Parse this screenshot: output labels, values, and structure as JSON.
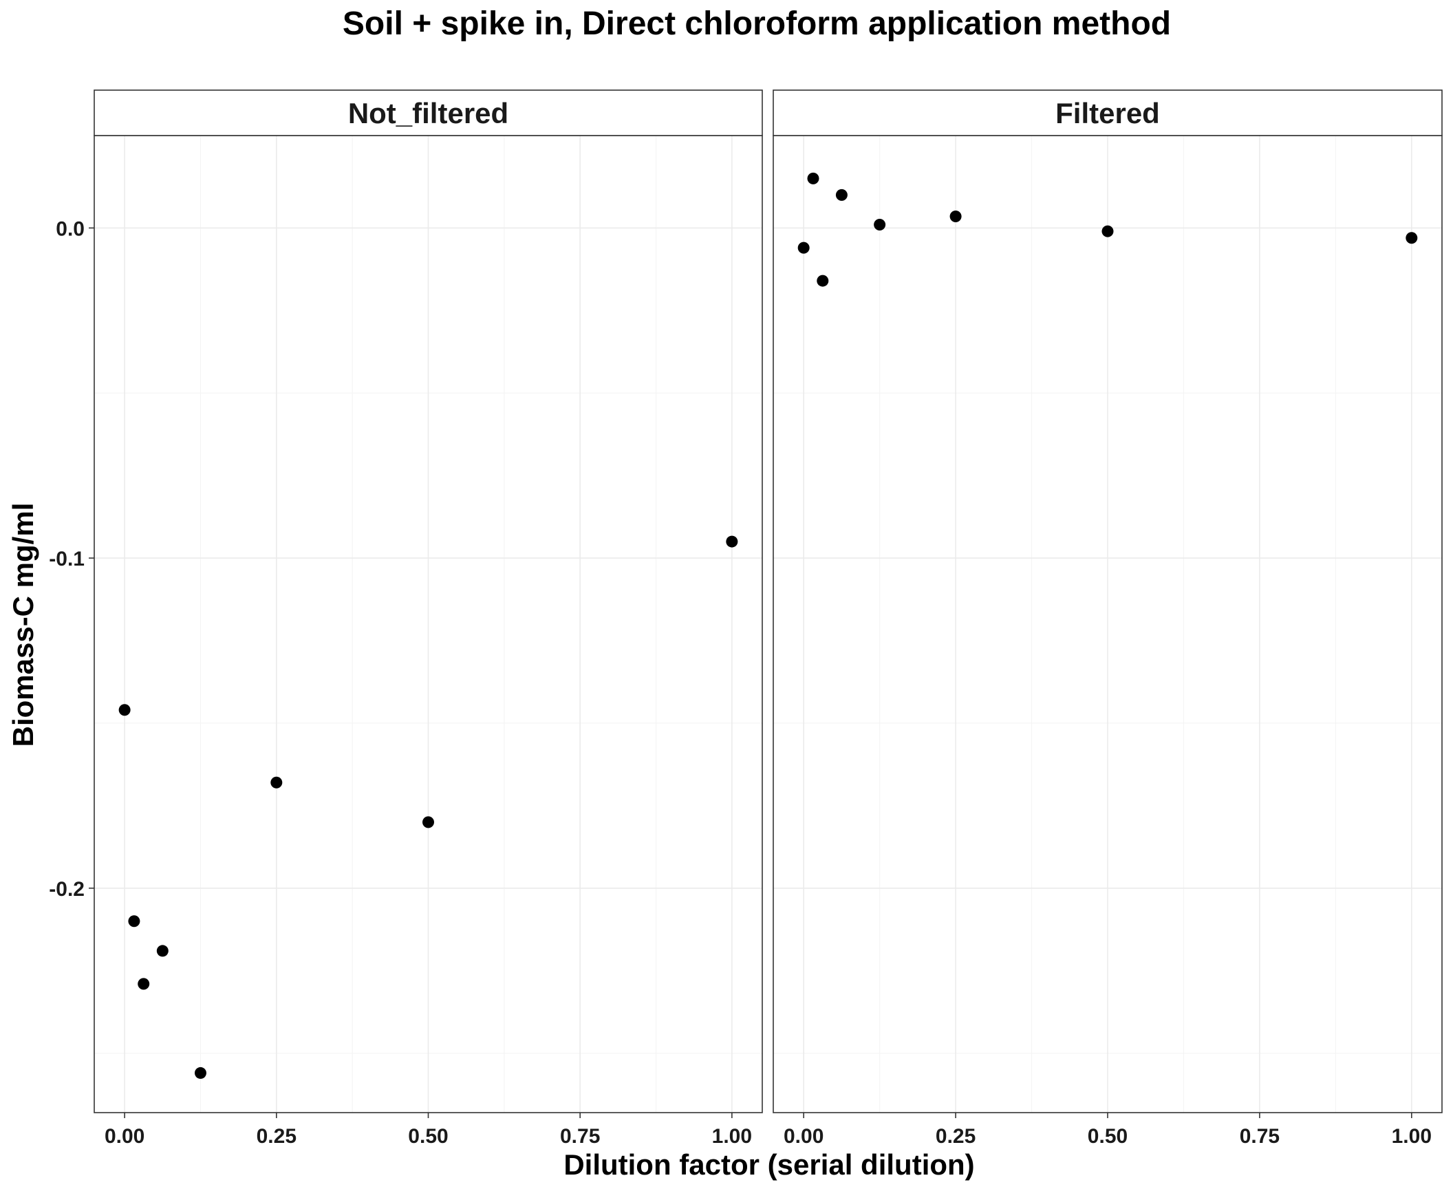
{
  "chart_data": {
    "type": "scatter",
    "title": "Soil + spike in, Direct chloroform application method",
    "xlabel": "Dilution factor (serial dilution)",
    "ylabel": "Biomass-C mg/ml",
    "xlim": [
      -0.05,
      1.05
    ],
    "ylim": [
      -0.268,
      0.028
    ],
    "x_ticks": [
      0,
      0.25,
      0.5,
      0.75,
      1
    ],
    "x_tick_labels": [
      "0.00",
      "0.25",
      "0.50",
      "0.75",
      "1.00"
    ],
    "y_ticks": [
      0,
      -0.1,
      -0.2
    ],
    "y_tick_labels": [
      "0.0",
      "-0.1",
      "-0.2"
    ],
    "grid": true,
    "point_color": "#000000",
    "panels": [
      {
        "label": "Not_filtered",
        "x": [
          0,
          0.015625,
          0.03125,
          0.0625,
          0.125,
          0.25,
          0.5,
          1.0
        ],
        "y": [
          -0.146,
          -0.21,
          -0.229,
          -0.219,
          -0.256,
          -0.168,
          -0.18,
          -0.095
        ]
      },
      {
        "label": "Filtered",
        "x": [
          0,
          0.015625,
          0.03125,
          0.0625,
          0.125,
          0.25,
          0.5,
          1.0
        ],
        "y": [
          -0.006,
          0.015,
          -0.016,
          0.01,
          0.001,
          0.0035,
          -0.001,
          -0.003
        ]
      }
    ]
  }
}
